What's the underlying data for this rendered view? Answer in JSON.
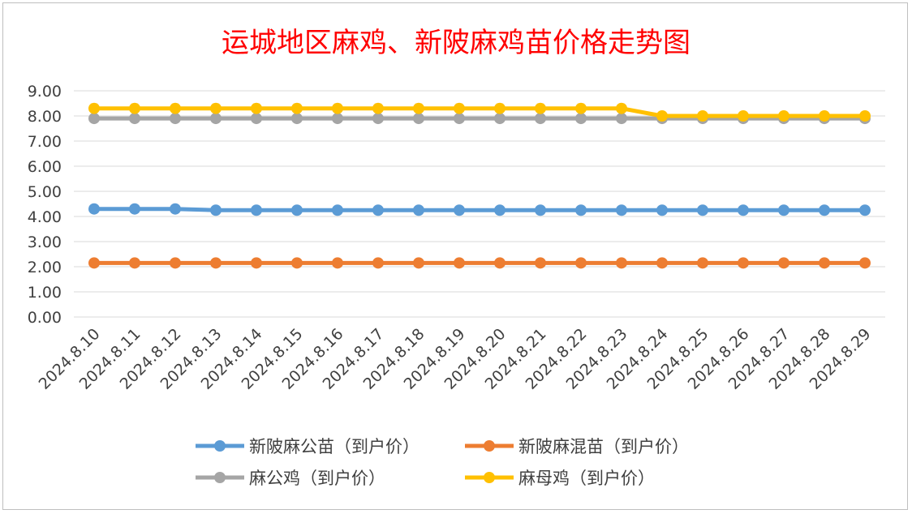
{
  "chart_data": {
    "type": "line",
    "title": "运城地区麻鸡、新陂麻鸡苗价格走势图",
    "xlabel": "",
    "ylabel": "",
    "ylim": [
      0,
      9
    ],
    "yticks": [
      "0.00",
      "1.00",
      "2.00",
      "3.00",
      "4.00",
      "5.00",
      "6.00",
      "7.00",
      "8.00",
      "9.00"
    ],
    "grid": true,
    "legend_position": "bottom",
    "categories": [
      "2024.8.10",
      "2024.8.11",
      "2024.8.12",
      "2024.8.13",
      "2024.8.14",
      "2024.8.15",
      "2024.8.16",
      "2024.8.17",
      "2024.8.18",
      "2024.8.19",
      "2024.8.20",
      "2024.8.21",
      "2024.8.22",
      "2024.8.23",
      "2024.8.24",
      "2024.8.25",
      "2024.8.26",
      "2024.8.27",
      "2024.8.28",
      "2024.8.29"
    ],
    "series": [
      {
        "name": "新陂麻公苗（到户价）",
        "color": "#5b9bd5",
        "values": [
          4.3,
          4.3,
          4.3,
          4.25,
          4.25,
          4.25,
          4.25,
          4.25,
          4.25,
          4.25,
          4.25,
          4.25,
          4.25,
          4.25,
          4.25,
          4.25,
          4.25,
          4.25,
          4.25,
          4.25
        ]
      },
      {
        "name": "新陂麻混苗（到户价）",
        "color": "#ed7d31",
        "values": [
          2.15,
          2.15,
          2.15,
          2.15,
          2.15,
          2.15,
          2.15,
          2.15,
          2.15,
          2.15,
          2.15,
          2.15,
          2.15,
          2.15,
          2.15,
          2.15,
          2.15,
          2.15,
          2.15,
          2.15
        ]
      },
      {
        "name": "麻公鸡（到户价）",
        "color": "#a5a5a5",
        "values": [
          7.9,
          7.9,
          7.9,
          7.9,
          7.9,
          7.9,
          7.9,
          7.9,
          7.9,
          7.9,
          7.9,
          7.9,
          7.9,
          7.9,
          7.9,
          7.9,
          7.9,
          7.9,
          7.9,
          7.9
        ]
      },
      {
        "name": "麻母鸡（到户价）",
        "color": "#ffc000",
        "values": [
          8.3,
          8.3,
          8.3,
          8.3,
          8.3,
          8.3,
          8.3,
          8.3,
          8.3,
          8.3,
          8.3,
          8.3,
          8.3,
          8.3,
          8.0,
          8.0,
          8.0,
          8.0,
          8.0,
          8.0
        ]
      }
    ]
  }
}
